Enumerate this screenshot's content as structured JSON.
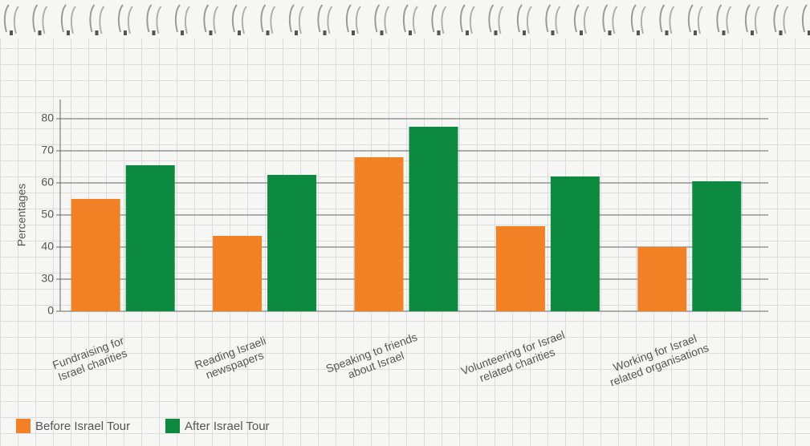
{
  "chart_data": {
    "type": "bar",
    "y_label": "Percentages",
    "categories": [
      "Fundraising for\nIsrael charities",
      "Reading Israeli\nnewspapers",
      "Speaking to friends\nabout Israel",
      "Volunteering for Israel\nrelated charities",
      "Working for Israel\nrelated organisations"
    ],
    "series": [
      {
        "name": "Before Israel Tour",
        "color": "#f28125",
        "values": [
          55,
          43.5,
          68,
          46.5,
          40
        ]
      },
      {
        "name": "After Israel Tour",
        "color": "#0b8a40",
        "values": [
          65.5,
          62.5,
          77.5,
          62,
          60.5
        ]
      }
    ],
    "ylim": [
      0,
      86
    ],
    "yticks": [
      0,
      30,
      40,
      50,
      60,
      70,
      80
    ],
    "grid": true
  }
}
